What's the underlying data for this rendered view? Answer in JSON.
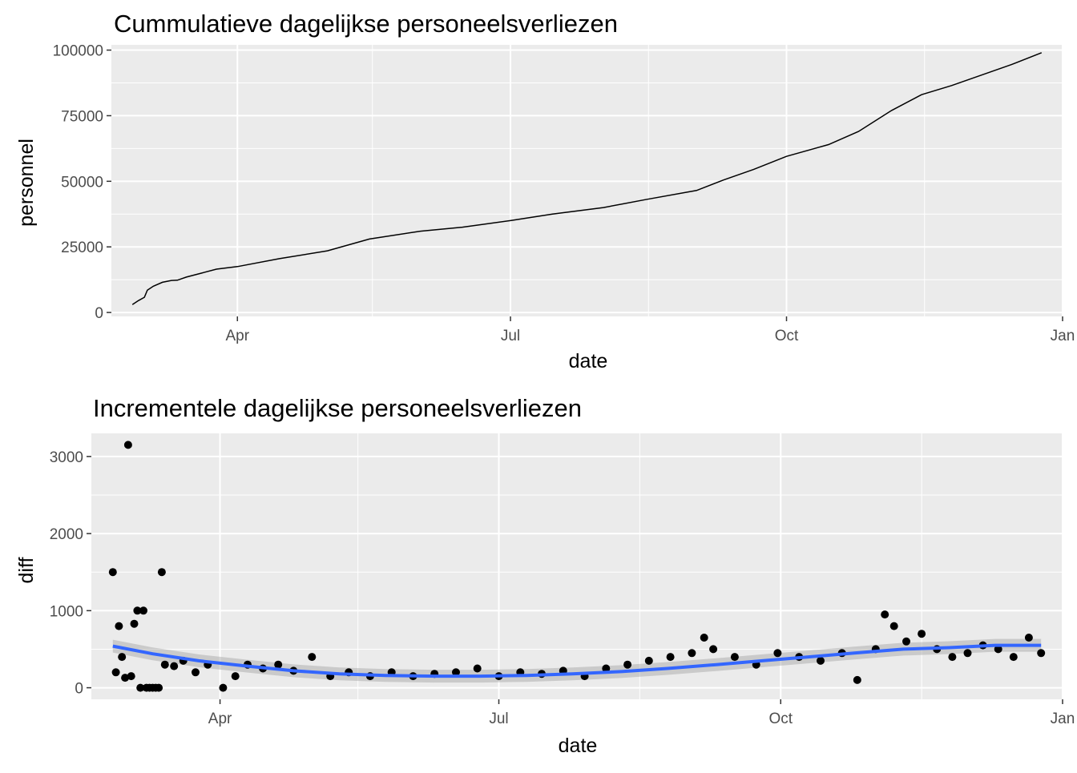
{
  "chart_data": [
    {
      "type": "line",
      "title": "Cummulatieve dagelijkse personeelsverliezen",
      "xlabel": "date",
      "ylabel": "personnel",
      "x_ticks": [
        {
          "date": "2022-04-01",
          "label": "Apr"
        },
        {
          "date": "2022-07-01",
          "label": "Jul"
        },
        {
          "date": "2022-10-01",
          "label": "Oct"
        },
        {
          "date": "2023-01-01",
          "label": "Jan"
        }
      ],
      "xlim": [
        "2022-02-18",
        "2023-01-01"
      ],
      "y_ticks": [
        0,
        25000,
        50000,
        75000,
        100000
      ],
      "ylim": [
        -1500,
        102000
      ],
      "grid": true,
      "series": [
        {
          "x": [
            "2022-02-25",
            "2022-02-27",
            "2022-03-01",
            "2022-03-02",
            "2022-03-04",
            "2022-03-07",
            "2022-03-10",
            "2022-03-12",
            "2022-03-15",
            "2022-03-20",
            "2022-03-25",
            "2022-04-01",
            "2022-04-15",
            "2022-05-01",
            "2022-05-15",
            "2022-06-01",
            "2022-06-15",
            "2022-07-01",
            "2022-07-15",
            "2022-08-01",
            "2022-08-15",
            "2022-09-01",
            "2022-09-10",
            "2022-09-20",
            "2022-10-01",
            "2022-10-15",
            "2022-10-25",
            "2022-11-05",
            "2022-11-15",
            "2022-11-25",
            "2022-12-05",
            "2022-12-15",
            "2022-12-25"
          ],
          "y": [
            3000,
            4500,
            5800,
            8500,
            10000,
            11500,
            12200,
            12300,
            13500,
            15000,
            16500,
            17500,
            20500,
            23500,
            28000,
            31000,
            32500,
            35000,
            37500,
            40000,
            43000,
            46500,
            50500,
            54500,
            59500,
            64000,
            69000,
            77000,
            83000,
            86500,
            90500,
            94500,
            99000
          ]
        }
      ]
    },
    {
      "type": "scatter",
      "title": "Incrementele dagelijkse personeelsverliezen",
      "xlabel": "date",
      "ylabel": "diff",
      "x_ticks": [
        {
          "date": "2022-04-01",
          "label": "Apr"
        },
        {
          "date": "2022-07-01",
          "label": "Jul"
        },
        {
          "date": "2022-10-01",
          "label": "Oct"
        },
        {
          "date": "2023-01-01",
          "label": "Jan"
        }
      ],
      "xlim": [
        "2022-02-18",
        "2023-01-01"
      ],
      "y_ticks": [
        0,
        1000,
        2000,
        3000
      ],
      "ylim": [
        -150,
        3300
      ],
      "grid": true,
      "series": [
        {
          "name": "points",
          "x": [
            "2022-02-25",
            "2022-02-26",
            "2022-02-27",
            "2022-02-28",
            "2022-03-01",
            "2022-03-02",
            "2022-03-03",
            "2022-03-04",
            "2022-03-05",
            "2022-03-06",
            "2022-03-07",
            "2022-03-08",
            "2022-03-09",
            "2022-03-10",
            "2022-03-11",
            "2022-03-12",
            "2022-03-13",
            "2022-03-14",
            "2022-03-17",
            "2022-03-20",
            "2022-03-24",
            "2022-03-28",
            "2022-04-02",
            "2022-04-06",
            "2022-04-10",
            "2022-04-15",
            "2022-04-20",
            "2022-04-25",
            "2022-05-01",
            "2022-05-07",
            "2022-05-13",
            "2022-05-20",
            "2022-05-27",
            "2022-06-03",
            "2022-06-10",
            "2022-06-17",
            "2022-06-24",
            "2022-07-01",
            "2022-07-08",
            "2022-07-15",
            "2022-07-22",
            "2022-07-29",
            "2022-08-05",
            "2022-08-12",
            "2022-08-19",
            "2022-08-26",
            "2022-09-02",
            "2022-09-06",
            "2022-09-09",
            "2022-09-16",
            "2022-09-23",
            "2022-09-30",
            "2022-10-07",
            "2022-10-14",
            "2022-10-21",
            "2022-10-26",
            "2022-11-01",
            "2022-11-04",
            "2022-11-07",
            "2022-11-11",
            "2022-11-16",
            "2022-11-21",
            "2022-11-26",
            "2022-12-01",
            "2022-12-06",
            "2022-12-11",
            "2022-12-16",
            "2022-12-21",
            "2022-12-25"
          ],
          "y": [
            1500,
            200,
            800,
            400,
            130,
            3150,
            150,
            830,
            1000,
            0,
            1000,
            0,
            0,
            0,
            0,
            0,
            1500,
            300,
            280,
            350,
            200,
            300,
            0,
            150,
            300,
            250,
            300,
            220,
            400,
            150,
            200,
            150,
            200,
            150,
            180,
            200,
            250,
            150,
            200,
            180,
            220,
            150,
            250,
            300,
            350,
            400,
            450,
            650,
            500,
            400,
            300,
            450,
            400,
            350,
            450,
            100,
            500,
            950,
            800,
            600,
            700,
            500,
            400,
            450,
            550,
            500,
            400,
            650,
            450
          ]
        },
        {
          "name": "smooth",
          "x": [
            "2022-02-25",
            "2022-03-10",
            "2022-03-25",
            "2022-04-10",
            "2022-04-25",
            "2022-05-10",
            "2022-05-25",
            "2022-06-10",
            "2022-06-25",
            "2022-07-10",
            "2022-07-25",
            "2022-08-10",
            "2022-08-25",
            "2022-09-10",
            "2022-09-25",
            "2022-10-10",
            "2022-10-25",
            "2022-11-10",
            "2022-11-25",
            "2022-12-10",
            "2022-12-25"
          ],
          "y": [
            540,
            440,
            350,
            280,
            220,
            180,
            160,
            150,
            150,
            160,
            180,
            210,
            250,
            300,
            350,
            400,
            450,
            500,
            520,
            550,
            550
          ]
        }
      ]
    }
  ]
}
